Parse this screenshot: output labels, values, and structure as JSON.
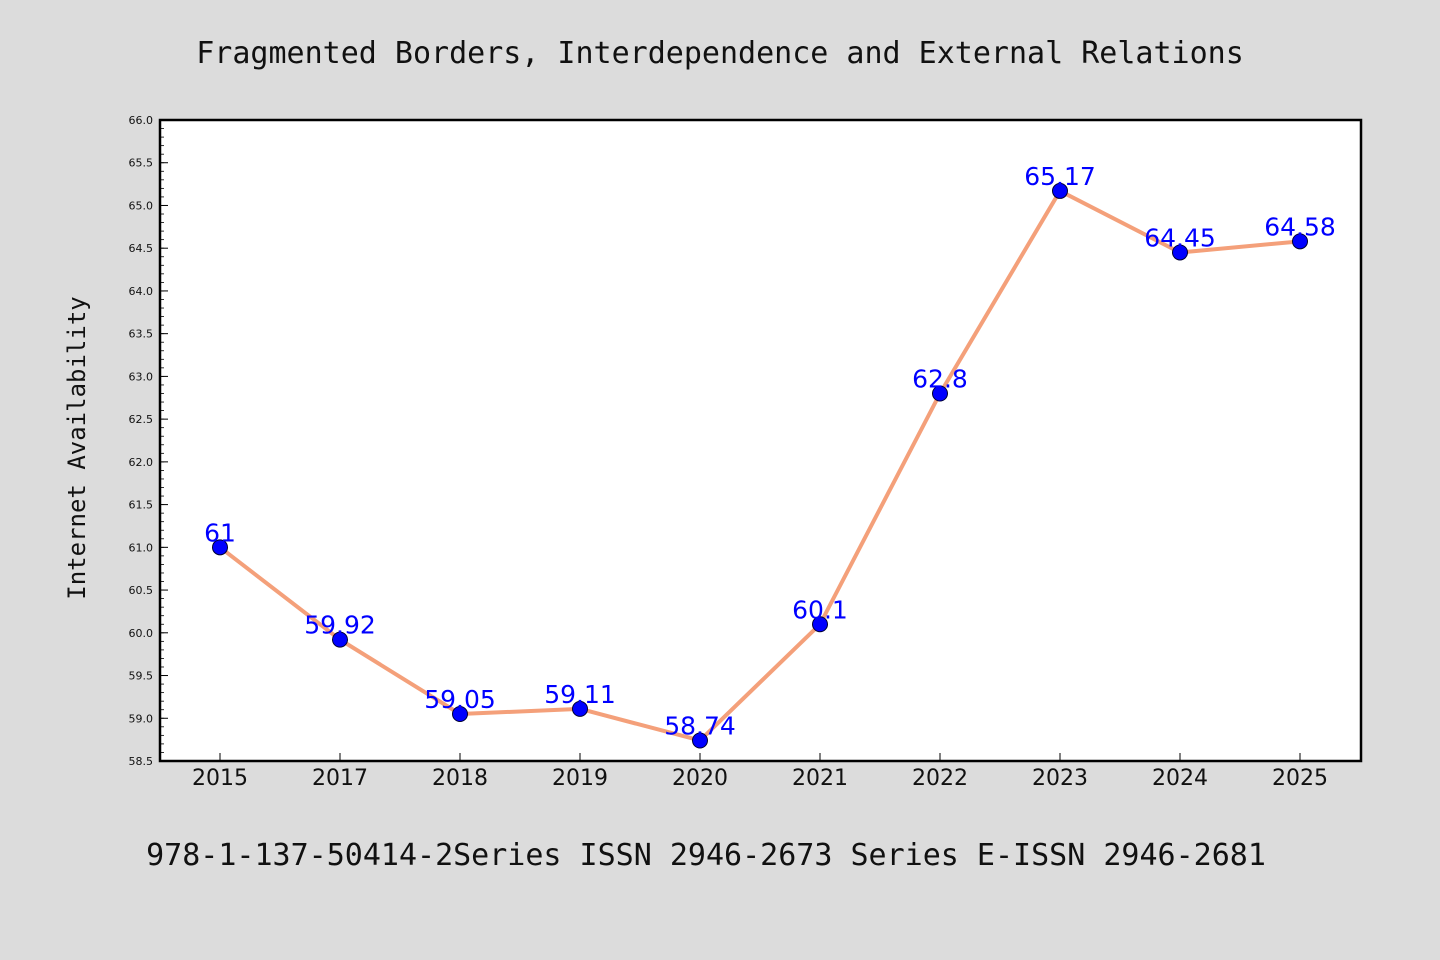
{
  "chart_data": {
    "type": "line",
    "title": "Fragmented Borders, Interdependence and External Relations",
    "ylabel": "Internet Availability",
    "xlabel": "",
    "categories": [
      "2015",
      "2017",
      "2018",
      "2019",
      "2020",
      "2021",
      "2022",
      "2023",
      "2024",
      "2025"
    ],
    "series": [
      {
        "values": [
          61,
          59.92,
          59.05,
          59.11,
          58.74,
          60.1,
          62.8,
          65.17,
          64.45,
          64.58
        ],
        "labels": [
          "61",
          "59.92",
          "59.05",
          "59.11",
          "58.74",
          "60.1",
          "62.8",
          "65.17",
          "64.45",
          "64.58"
        ],
        "line_color": "#f4a07a",
        "marker_color": "#0000ff"
      }
    ],
    "ylim": [
      58.5,
      66.0
    ],
    "yticks": [
      "58.5",
      "59.0",
      "59.5",
      "60.0",
      "60.5",
      "61.0",
      "61.5",
      "62.0",
      "62.5",
      "63.0",
      "63.5",
      "64.0",
      "64.5",
      "65.0",
      "65.5",
      "66.0"
    ],
    "grid": false,
    "legend": "none",
    "footer": "978-1-137-50414-2Series ISSN 2946-2673 Series E-ISSN 2946-2681"
  },
  "colors": {
    "background": "#dcdcdc",
    "plot_background": "#ffffff",
    "label_color": "#0000ff"
  }
}
